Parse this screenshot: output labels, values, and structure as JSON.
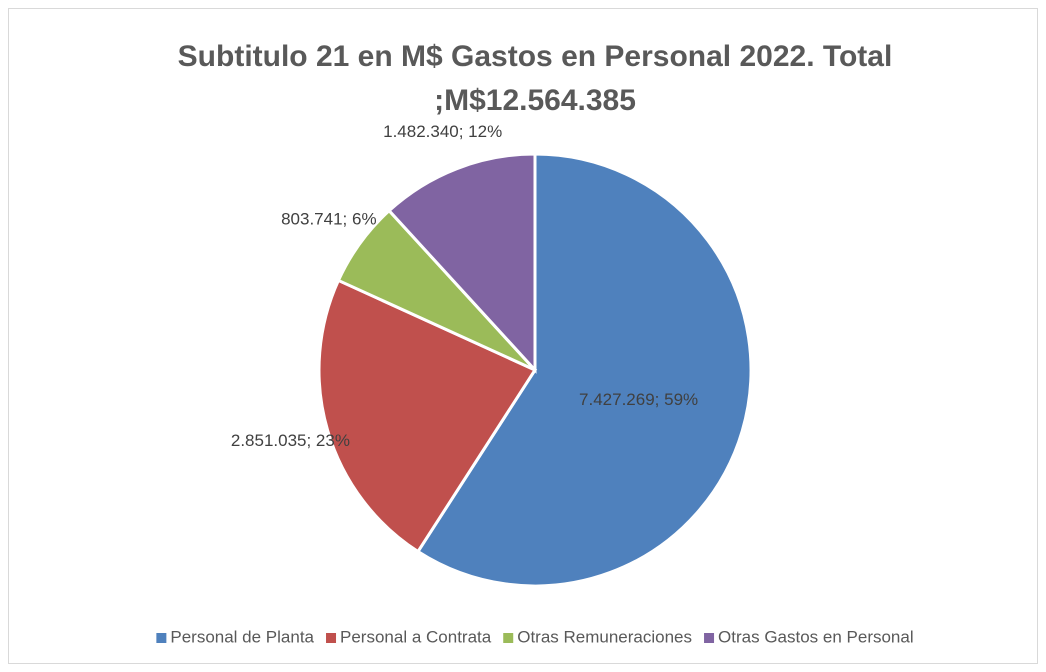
{
  "chart_data": {
    "type": "pie",
    "title": [
      "Subtitulo 21 en M$  Gastos en Personal 2022. Total",
      ";M$12.564.385"
    ],
    "categories": [
      "Personal de Planta",
      "Personal a Contrata",
      "Otras Remuneraciones",
      "Otras Gastos en Personal"
    ],
    "values": [
      7427269,
      2851035,
      803741,
      1482340
    ],
    "value_labels": [
      "7.427.269; 59%",
      "2.851.035; 23%",
      "803.741; 6%",
      "1.482.340; 12%"
    ],
    "colors": [
      "#4f81bd",
      "#c0504d",
      "#9bbb59",
      "#8064a2"
    ],
    "legend": "bottom"
  }
}
